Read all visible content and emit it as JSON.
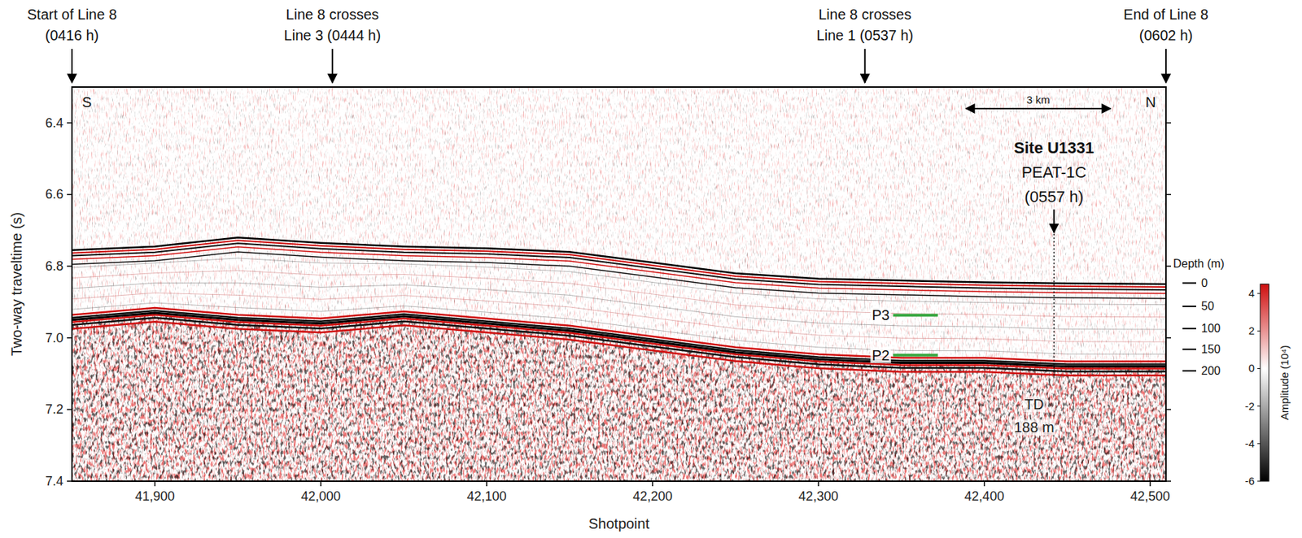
{
  "chart_data": {
    "type": "seismic_section",
    "x_label": "Shotpoint",
    "y_label": "Two-way traveltime (s)",
    "xlim": [
      41850,
      42509.5
    ],
    "ylim": [
      6.3,
      7.4
    ],
    "xticks": [
      {
        "value": 41900,
        "label": "41,900"
      },
      {
        "value": 42000,
        "label": "42,000"
      },
      {
        "value": 42100,
        "label": "42,100"
      },
      {
        "value": 42200,
        "label": "42,200"
      },
      {
        "value": 42300,
        "label": "42,300"
      },
      {
        "value": 42400,
        "label": "42,400"
      },
      {
        "value": 42500,
        "label": "42,500"
      }
    ],
    "yticks": [
      6.4,
      6.6,
      6.8,
      {
        "value": 7,
        "label": "7.0"
      },
      7.2,
      7.4
    ],
    "x": [
      41850,
      41900,
      41950,
      42000,
      42050,
      42100,
      42150,
      42200,
      42250,
      42300,
      42350,
      42400,
      42450,
      42509.5
    ],
    "series": [
      {
        "color": "#000000",
        "values": [
          6.755,
          6.745,
          6.72,
          6.735,
          6.745,
          6.75,
          6.76,
          6.79,
          6.82,
          6.835,
          6.84,
          6.845,
          6.848,
          6.85
        ]
      },
      {
        "color": "#000000",
        "values": [
          6.95,
          6.93,
          6.95,
          6.96,
          6.94,
          6.96,
          6.98,
          7.01,
          7.04,
          7.06,
          7.07,
          7.07,
          7.08,
          7.08
        ]
      }
    ],
    "corner_labels": {
      "left": "S",
      "right": "N"
    },
    "top_annotations": [
      {
        "lines": [
          "Start of Line 8",
          "(0416 h)"
        ],
        "x": 41850
      },
      {
        "lines": [
          "Line 8 crosses",
          "Line 3 (0444 h)"
        ],
        "x": 42007
      },
      {
        "lines": [
          "Line 8 crosses",
          "Line 1 (0537 h)"
        ],
        "x": 42328
      },
      {
        "lines": [
          "End of Line 8",
          "(0602 h)"
        ],
        "x": 42509.5
      }
    ],
    "site": {
      "lines": [
        "Site U1331",
        "PEAT-1C",
        "(0557 h)"
      ],
      "x": 42442,
      "y": [
        6.71,
        7.11
      ]
    },
    "horizons": [
      {
        "label": "P3",
        "x": [
          42345,
          42372
        ],
        "y": 6.937,
        "color": "#3aa843"
      },
      {
        "label": "P2",
        "x": [
          42345,
          42372
        ],
        "y": 7.048,
        "color": "#3aa843"
      }
    ],
    "td": {
      "lines": [
        "TD",
        "188 m"
      ],
      "x": 42430,
      "y": [
        7.185,
        7.25
      ]
    },
    "scale_bar": {
      "label": "3 km",
      "x": [
        42388,
        42477
      ],
      "y": 6.36
    },
    "depth_scale": {
      "title": "Depth (m)",
      "ticks": [
        {
          "value": 0,
          "twt": 6.847
        },
        {
          "value": 50,
          "twt": 6.912
        },
        {
          "value": 100,
          "twt": 6.974
        },
        {
          "value": 150,
          "twt": 7.032
        },
        {
          "value": 200,
          "twt": 7.092
        }
      ]
    },
    "colorbar": {
      "title": "Amplitude (10⁴)",
      "range": [
        -6,
        4.5
      ],
      "ticks": [
        4,
        2,
        0,
        -2,
        -4,
        -6
      ],
      "colors": [
        "#000000",
        "#ffffff",
        "#d01010"
      ]
    }
  }
}
